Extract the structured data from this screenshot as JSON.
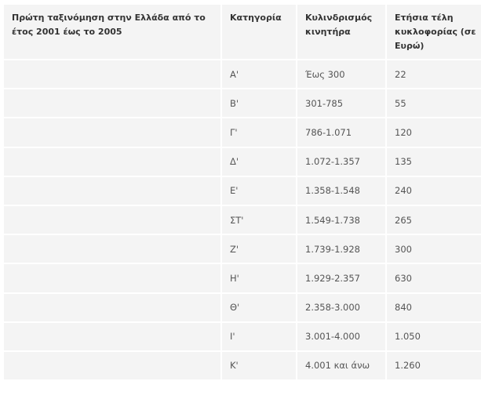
{
  "table": {
    "headers": [
      "Πρώτη ταξινόμηση στην Ελλάδα από το έτος 2001 έως το 2005",
      "Κατηγορία",
      "Κυλινδρισμός κινητήρα",
      "Ετήσια τέλη κυκλοφορίας (σε Ευρώ)"
    ],
    "rows": [
      [
        "",
        "Α'",
        "Έως 300",
        "22"
      ],
      [
        "",
        "Β'",
        "301-785",
        "55"
      ],
      [
        "",
        "Γ'",
        "786-1.071",
        "120"
      ],
      [
        "",
        "Δ'",
        "1.072-1.357",
        "135"
      ],
      [
        "",
        "Ε'",
        "1.358-1.548",
        "240"
      ],
      [
        "",
        "ΣΤ'",
        "1.549-1.738",
        "265"
      ],
      [
        "",
        "Ζ'",
        "1.739-1.928",
        "300"
      ],
      [
        "",
        "Η'",
        "1.929-2.357",
        "630"
      ],
      [
        "",
        "Θ'",
        "2.358-3.000",
        "840"
      ],
      [
        "",
        "Ι'",
        "3.001-4.000",
        "1.050"
      ],
      [
        "",
        "Κ'",
        "4.001 και άνω",
        "1.260"
      ]
    ]
  }
}
